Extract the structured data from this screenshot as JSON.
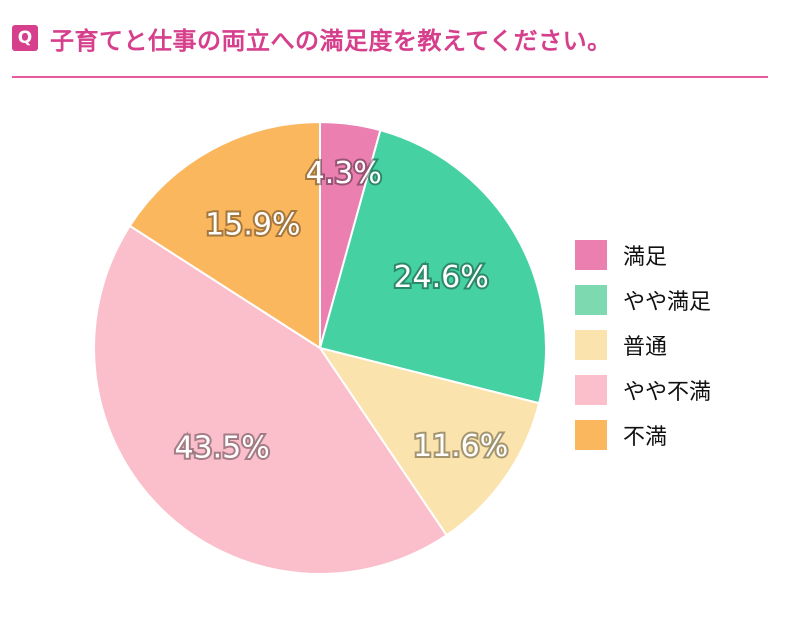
{
  "header": {
    "badge": "Q",
    "question": "子育てと仕事の両立への満足度を教えてください。"
  },
  "colors": {
    "accent": "#d63f8c",
    "divider": "#e85aa0"
  },
  "chart_data": {
    "type": "pie",
    "title": "",
    "categories": [
      "満足",
      "やや満足",
      "普通",
      "やや不満",
      "不満"
    ],
    "values": [
      4.3,
      24.6,
      11.6,
      43.5,
      15.9
    ],
    "labels": [
      "4.3%",
      "24.6%",
      "11.6%",
      "43.5%",
      "15.9%"
    ],
    "colors": [
      "#ea7fb0",
      "#45d1a1",
      "#fbe3ad",
      "#fbbfcc",
      "#fbb75e"
    ],
    "legend_colors": [
      "#ea7fb0",
      "#7dd9b0",
      "#fbe3ad",
      "#fbbfcc",
      "#fbb75e"
    ],
    "start": "top",
    "direction": "clockwise",
    "legend_position": "right"
  }
}
